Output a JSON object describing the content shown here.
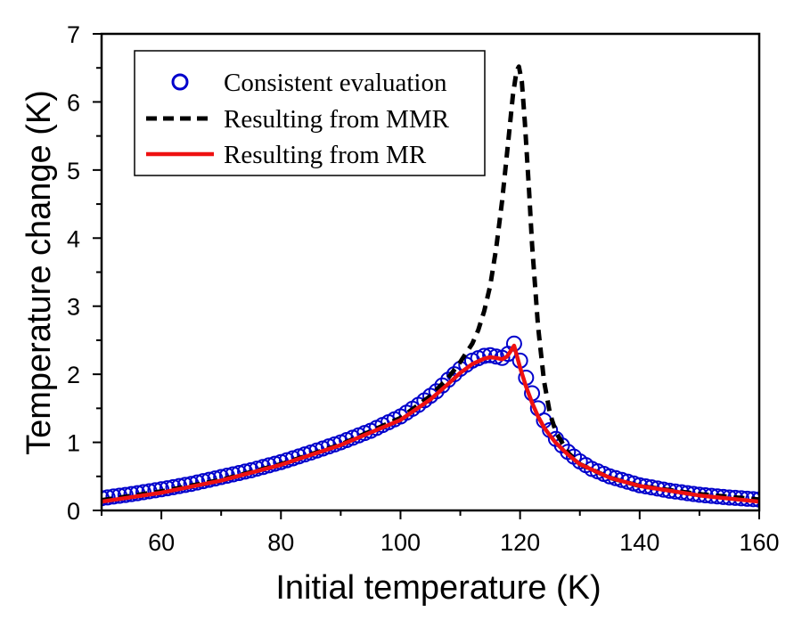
{
  "chart_data": {
    "type": "line",
    "title": "",
    "xlabel": "Initial temperature (K)",
    "ylabel": "Temperature change (K)",
    "xlim": [
      50,
      160
    ],
    "ylim": [
      0,
      7
    ],
    "xticks": [
      60,
      80,
      100,
      120,
      140,
      160
    ],
    "xticks_minor": [
      50,
      70,
      90,
      110,
      130,
      150
    ],
    "yticks": [
      0,
      1,
      2,
      3,
      4,
      5,
      6,
      7
    ],
    "yticks_minor": [
      0.5,
      1.5,
      2.5,
      3.5,
      4.5,
      5.5,
      6.5
    ],
    "grid": false,
    "legend_position": "top-left",
    "colors": {
      "consistent": "#0000cc",
      "mmr": "#000000",
      "mr": "#ee1111"
    },
    "series": [
      {
        "name": "Consistent evaluation",
        "style": "open-circle-markers",
        "x": [
          50,
          55,
          60,
          65,
          70,
          75,
          80,
          85,
          90,
          95,
          100,
          103,
          106,
          108,
          110,
          112,
          114,
          115,
          116,
          117,
          118,
          119,
          120,
          121,
          122,
          123,
          124,
          125,
          126,
          128,
          130,
          132,
          135,
          140,
          145,
          150,
          155,
          160
        ],
        "y": [
          0.18,
          0.24,
          0.31,
          0.39,
          0.49,
          0.59,
          0.71,
          0.85,
          1.0,
          1.17,
          1.38,
          1.55,
          1.75,
          1.92,
          2.08,
          2.2,
          2.27,
          2.28,
          2.26,
          2.24,
          2.3,
          2.45,
          2.2,
          1.95,
          1.72,
          1.5,
          1.32,
          1.18,
          1.05,
          0.86,
          0.72,
          0.61,
          0.5,
          0.37,
          0.29,
          0.23,
          0.19,
          0.16
        ]
      },
      {
        "name": "Resulting from MMR",
        "style": "dashed-line",
        "x": [
          50,
          60,
          70,
          80,
          90,
          100,
          105,
          108,
          110,
          112,
          113,
          114,
          115,
          116,
          117,
          118,
          118.8,
          119.4,
          119.8,
          120.3,
          120.8,
          121.5,
          122,
          123,
          124,
          125,
          126,
          128,
          130,
          135,
          140,
          150,
          160
        ],
        "y": [
          0.15,
          0.28,
          0.45,
          0.68,
          0.97,
          1.36,
          1.68,
          1.95,
          2.18,
          2.45,
          2.65,
          2.93,
          3.3,
          3.85,
          4.55,
          5.4,
          6.1,
          6.45,
          6.52,
          6.3,
          5.7,
          4.7,
          3.9,
          2.7,
          1.9,
          1.42,
          1.15,
          0.85,
          0.68,
          0.48,
          0.36,
          0.24,
          0.16
        ]
      },
      {
        "name": "Resulting from MR",
        "style": "solid-line",
        "x": [
          50,
          60,
          70,
          80,
          90,
          100,
          105,
          108,
          110,
          112,
          114,
          115,
          116,
          117,
          117.8,
          118.5,
          119,
          120,
          121,
          122,
          123,
          124,
          125,
          126,
          128,
          130,
          135,
          140,
          150,
          160
        ],
        "y": [
          0.13,
          0.26,
          0.44,
          0.67,
          0.96,
          1.33,
          1.63,
          1.86,
          2.02,
          2.15,
          2.23,
          2.25,
          2.24,
          2.22,
          2.26,
          2.35,
          2.42,
          2.1,
          1.82,
          1.58,
          1.38,
          1.22,
          1.1,
          0.99,
          0.82,
          0.68,
          0.48,
          0.36,
          0.22,
          0.13
        ]
      }
    ]
  },
  "legend": {
    "items": [
      {
        "label": "Consistent evaluation"
      },
      {
        "label": "Resulting from MMR"
      },
      {
        "label": "Resulting from MR"
      }
    ]
  }
}
